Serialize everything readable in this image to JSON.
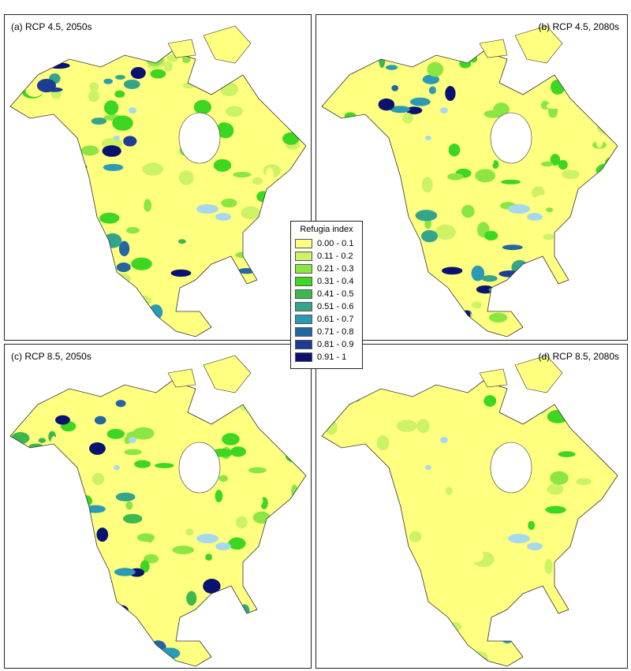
{
  "panels": [
    {
      "label": "(a) RCP 4.5, 2050s"
    },
    {
      "label": "(b) RCP 4.5, 2080s"
    },
    {
      "label": "(c) RCP 8.5, 2050s"
    },
    {
      "label": "(d) RCP 8.5, 2080s"
    }
  ],
  "legend": {
    "title": "Refugia index",
    "items": [
      {
        "label": "0.00 - 0.1",
        "color": "#ffff80"
      },
      {
        "label": "0.11 - 0.2",
        "color": "#ccf266"
      },
      {
        "label": "0.21 - 0.3",
        "color": "#8ce641"
      },
      {
        "label": "0.31 - 0.4",
        "color": "#3dd620"
      },
      {
        "label": "0.41 - 0.5",
        "color": "#3cb84e"
      },
      {
        "label": "0.51 - 0.6",
        "color": "#35a58a"
      },
      {
        "label": "0.61 - 0.7",
        "color": "#2a9ab5"
      },
      {
        "label": "0.71 - 0.8",
        "color": "#2466a3"
      },
      {
        "label": "0.81 - 0.9",
        "color": "#1d3d94"
      },
      {
        "label": "0.91 - 1",
        "color": "#0a1270"
      }
    ]
  }
}
